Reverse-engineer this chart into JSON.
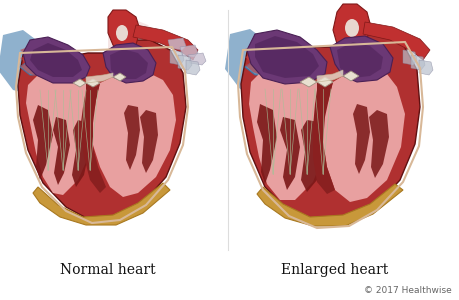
{
  "title_left": "Normal heart",
  "title_right": "Enlarged heart",
  "copyright": "© 2017 Healthwise",
  "bg_color": "#ffffff",
  "heart_wall_color": "#b03030",
  "heart_wall_light": "#c84848",
  "heart_inner_pink": "#e8a0a0",
  "heart_inner_pink2": "#d08888",
  "heart_muscle_dark": "#7a1818",
  "heart_muscle_med": "#8b2020",
  "atria_purple": "#6b3875",
  "atria_purple_dark": "#4a2055",
  "atria_purple_light": "#8050a0",
  "aorta_red": "#c03030",
  "aorta_light": "#d84848",
  "vein_blue": "#6090b8",
  "vein_blue_dark": "#4070a0",
  "vein_blue_light": "#90b8d8",
  "fat_yellow": "#c8983a",
  "fat_yellow_light": "#d8b060",
  "fat_yellow_dark": "#a87820",
  "valve_cream": "#d8c8a8",
  "tendon_green": "#90a888",
  "tendon_green2": "#a8c098",
  "septum_color": "#8a2020",
  "white_tissue": "#e8e0d0",
  "title_fontsize": 10,
  "copyright_fontsize": 6.5,
  "label_color": "#111111",
  "copyright_color": "#666666",
  "bg_red_gradient": "#f5d0d0",
  "vessels_red_ext": "#c84040"
}
